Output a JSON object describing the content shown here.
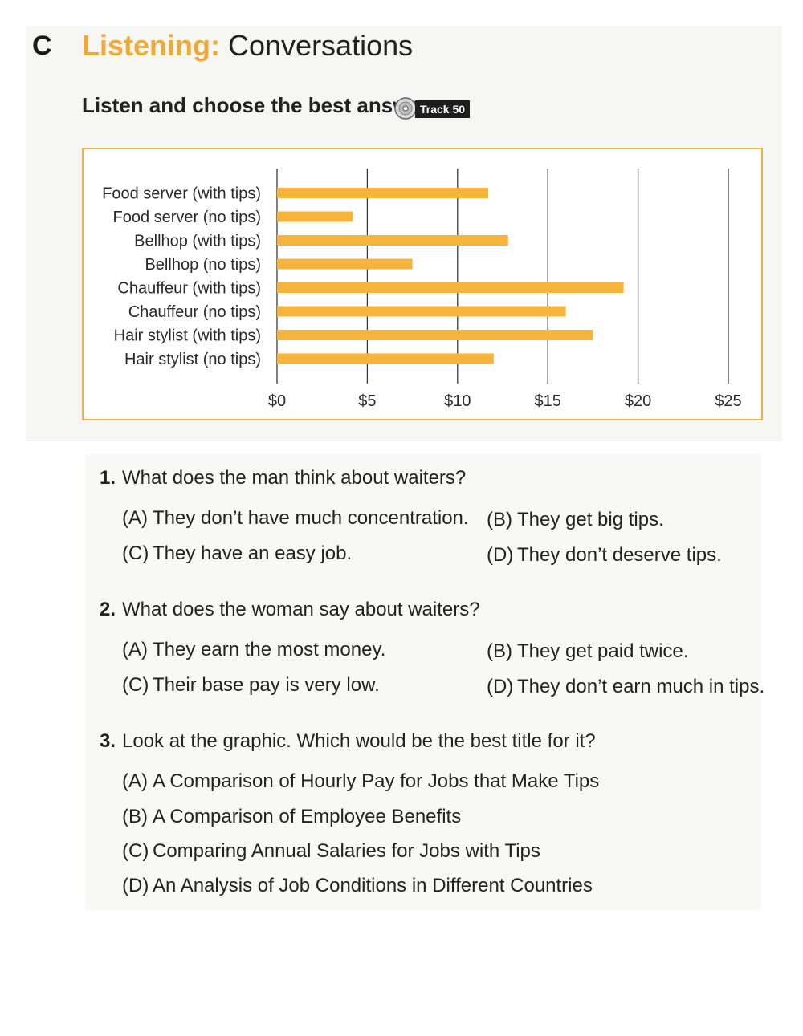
{
  "header": {
    "section_letter": "C",
    "title_accent": "Listening:",
    "title_rest": "Conversations"
  },
  "instruction": {
    "text": "Listen and choose the best answer.",
    "track_label": "Track 50"
  },
  "chart_data": {
    "type": "bar",
    "orientation": "horizontal",
    "categories": [
      "Food server (with tips)",
      "Food server (no tips)",
      "Bellhop (with tips)",
      "Bellhop (no tips)",
      "Chauffeur (with tips)",
      "Chauffeur (no tips)",
      "Hair stylist (with tips)",
      "Hair stylist (no tips)"
    ],
    "values": [
      11.7,
      4.2,
      12.8,
      7.5,
      19.2,
      16.0,
      17.5,
      12.0
    ],
    "xlim": [
      0,
      25
    ],
    "xticks": [
      0,
      5,
      10,
      15,
      20,
      25
    ],
    "xtick_labels": [
      "$0",
      "$5",
      "$10",
      "$15",
      "$20",
      "$25"
    ],
    "title": "",
    "xlabel": "",
    "ylabel": "",
    "grid": "vertical",
    "bar_color": "#f6b43c",
    "border_color": "#f2b24a"
  },
  "questions": [
    {
      "number": "1.",
      "text": "What does the man think about waiters?",
      "options": [
        {
          "letter": "(A)",
          "text": "They don’t have much concentration."
        },
        {
          "letter": "(B)",
          "text": "They get big tips."
        },
        {
          "letter": "(C)",
          "text": "They have an easy job."
        },
        {
          "letter": "(D)",
          "text": "They don’t deserve tips."
        }
      ]
    },
    {
      "number": "2.",
      "text": "What does the woman say about waiters?",
      "options": [
        {
          "letter": "(A)",
          "text": "They earn the most money."
        },
        {
          "letter": "(B)",
          "text": "They get paid twice."
        },
        {
          "letter": "(C)",
          "text": "Their base pay is very low."
        },
        {
          "letter": "(D)",
          "text": "They don’t earn much in tips."
        }
      ]
    },
    {
      "number": "3.",
      "text": "Look at the graphic. Which would be the best title for it?",
      "options": [
        {
          "letter": "(A)",
          "text": "A Comparison of Hourly Pay for Jobs that Make Tips"
        },
        {
          "letter": "(B)",
          "text": "A Comparison of Employee Benefits"
        },
        {
          "letter": "(C)",
          "text": "Comparing Annual Salaries for Jobs with Tips"
        },
        {
          "letter": "(D)",
          "text": "An Analysis of Job Conditions in Different Countries"
        }
      ]
    }
  ],
  "colors": {
    "accent": "#f0a934",
    "text": "#222222"
  },
  "icons": {
    "cd": "cd-icon"
  }
}
